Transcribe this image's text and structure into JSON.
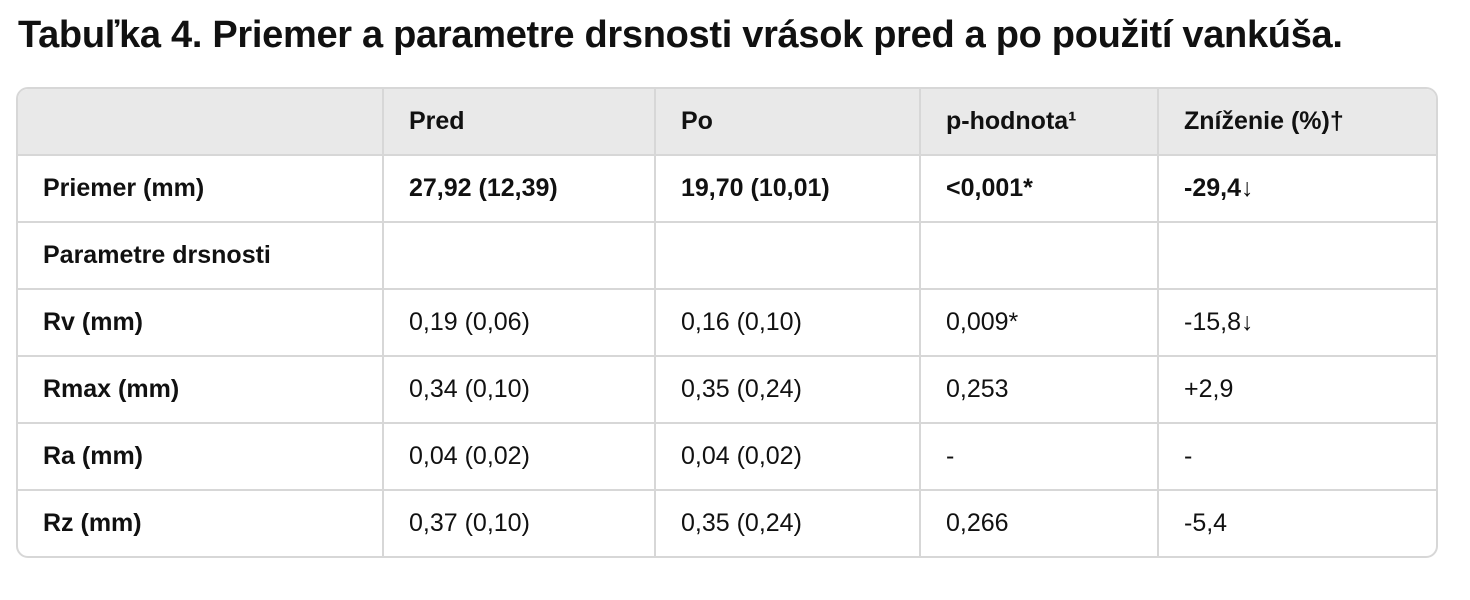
{
  "title": "Tabuľka 4. Priemer a parametre drsnosti vrások pred a po použití vankúša.",
  "table": {
    "headers": [
      "",
      "Pred",
      "Po",
      "p-hodnota¹",
      "Zníženie (%)†"
    ],
    "rows": [
      {
        "label": "Priemer (mm)",
        "cells": [
          "27,92 (12,39)",
          "19,70 (10,01)",
          "<0,001*",
          "-29,4↓"
        ]
      },
      {
        "label": "Parametre drsnosti",
        "cells": [
          "",
          "",
          "",
          ""
        ]
      },
      {
        "label": "Rv (mm)",
        "cells": [
          "0,19 (0,06)",
          "0,16 (0,10)",
          "0,009*",
          "-15,8↓"
        ]
      },
      {
        "label": "Rmax (mm)",
        "cells": [
          "0,34 (0,10)",
          "0,35 (0,24)",
          "0,253",
          "+2,9"
        ]
      },
      {
        "label": "Ra (mm)",
        "cells": [
          "0,04 (0,02)",
          "0,04 (0,02)",
          "-",
          "-"
        ]
      },
      {
        "label": "Rz (mm)",
        "cells": [
          "0,37 (0,10)",
          "0,35 (0,24)",
          "0,266",
          "-5,4"
        ]
      }
    ]
  }
}
